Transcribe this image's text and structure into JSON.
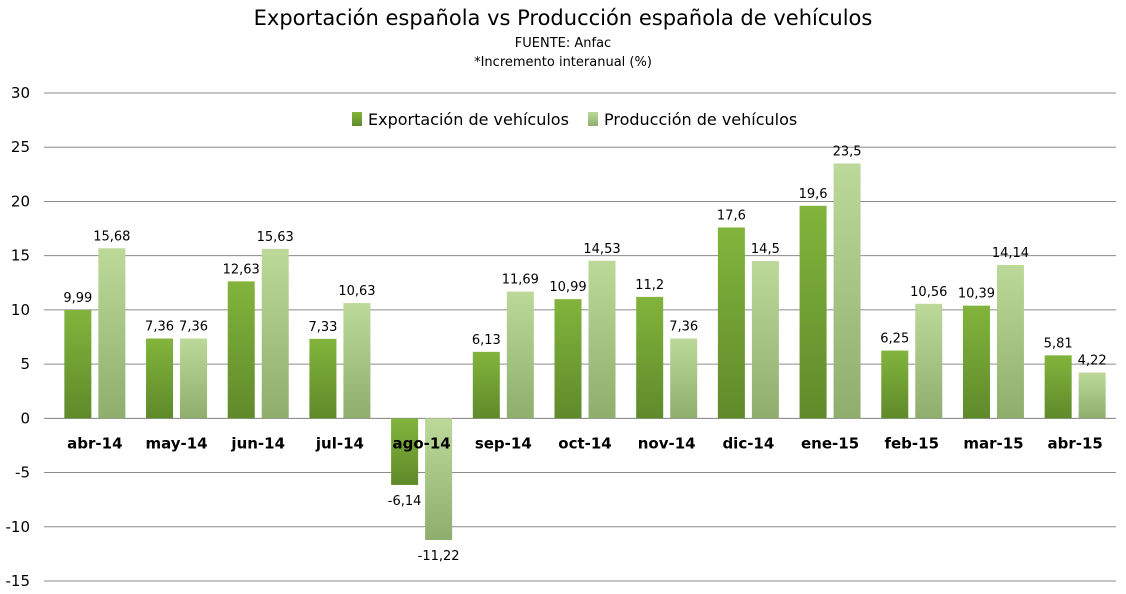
{
  "chart_data": {
    "type": "bar",
    "title": "Exportación española vs Producción española de vehículos",
    "subtitle": "FUENTE: Anfac",
    "note": "*Incremento interanual (%)",
    "categories": [
      "abr-14",
      "may-14",
      "jun-14",
      "jul-14",
      "ago-14",
      "sep-14",
      "oct-14",
      "nov-14",
      "dic-14",
      "ene-15",
      "feb-15",
      "mar-15",
      "abr-15"
    ],
    "series": [
      {
        "name": "Exportación de vehículos",
        "color": "#77a536",
        "values": [
          9.99,
          7.36,
          12.63,
          7.33,
          -6.14,
          6.13,
          10.99,
          11.2,
          17.6,
          19.6,
          6.25,
          10.39,
          5.81
        ],
        "labels": [
          "9,99",
          "7,36",
          "12,63",
          "7,33",
          "-6,14",
          "6,13",
          "10,99",
          "11,2",
          "17,6",
          "19,6",
          "6,25",
          "10,39",
          "5,81"
        ]
      },
      {
        "name": "Producción de vehículos",
        "color": "#b3d38a",
        "values": [
          15.68,
          7.36,
          15.63,
          10.63,
          -11.22,
          11.69,
          14.53,
          7.36,
          14.5,
          23.5,
          10.56,
          14.14,
          4.22
        ],
        "labels": [
          "15,68",
          "7,36",
          "15,63",
          "10,63",
          "-11,22",
          "11,69",
          "14,53",
          "7,36",
          "14,5",
          "23,5",
          "10,56",
          "14,14",
          "4,22"
        ]
      }
    ],
    "yticks": [
      30,
      25,
      20,
      15,
      10,
      5,
      0,
      -5,
      -10,
      -15
    ],
    "ylim": [
      -15,
      30
    ],
    "grid": true,
    "legend": "top-center"
  }
}
